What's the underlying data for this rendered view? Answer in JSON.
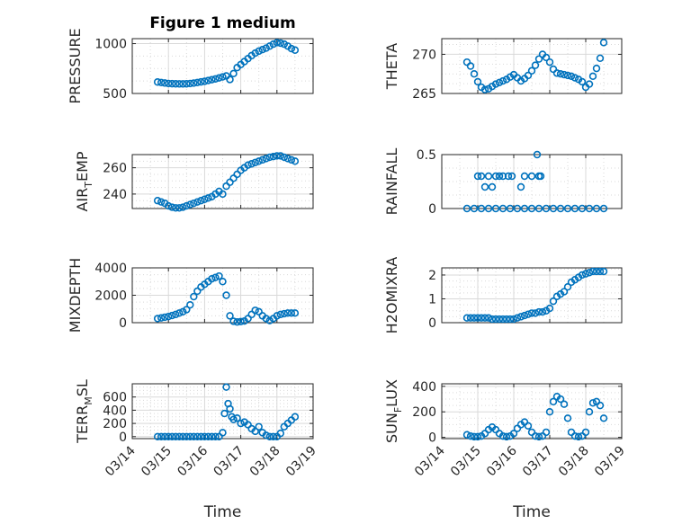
{
  "figure": {
    "title": "Figure 1 medium"
  },
  "colors": {
    "marker": "#0072BD",
    "grid": "#d9d9d9",
    "axis": "#262626",
    "background": "#ffffff"
  },
  "chart_data": [
    {
      "id": "pressure",
      "type": "scatter",
      "title": "Figure 1 medium",
      "ylabel": "PRESSURE",
      "xlabel": "",
      "ylim": [
        500,
        1050
      ],
      "yticks": [
        500,
        1000
      ],
      "xticks": [],
      "grid": true,
      "x": [
        14.7,
        14.8,
        14.9,
        15.0,
        15.1,
        15.2,
        15.3,
        15.4,
        15.5,
        15.6,
        15.7,
        15.8,
        15.9,
        16.0,
        16.1,
        16.2,
        16.3,
        16.4,
        16.5,
        16.6,
        16.7,
        16.8,
        16.9,
        17.0,
        17.1,
        17.2,
        17.3,
        17.4,
        17.5,
        17.6,
        17.7,
        17.8,
        17.9,
        18.0,
        18.1,
        18.2,
        18.3,
        18.4,
        18.5
      ],
      "y": [
        615,
        610,
        605,
        600,
        598,
        597,
        596,
        596,
        597,
        600,
        604,
        610,
        616,
        622,
        630,
        638,
        646,
        656,
        666,
        676,
        640,
        700,
        760,
        790,
        820,
        850,
        880,
        905,
        925,
        940,
        955,
        975,
        995,
        1010,
        1005,
        995,
        975,
        950,
        935
      ]
    },
    {
      "id": "theta",
      "type": "scatter",
      "title": "",
      "ylabel": "THETA",
      "xlabel": "",
      "ylim": [
        265,
        272
      ],
      "yticks": [
        265,
        270
      ],
      "xticks": [],
      "grid": true,
      "x": [
        14.7,
        14.8,
        14.9,
        15.0,
        15.1,
        15.2,
        15.3,
        15.4,
        15.5,
        15.6,
        15.7,
        15.8,
        15.9,
        16.0,
        16.1,
        16.2,
        16.3,
        16.4,
        16.5,
        16.6,
        16.7,
        16.8,
        16.9,
        17.0,
        17.1,
        17.2,
        17.3,
        17.4,
        17.5,
        17.6,
        17.7,
        17.8,
        17.9,
        18.0,
        18.1,
        18.2,
        18.3,
        18.4,
        18.5
      ],
      "y": [
        269.0,
        268.5,
        267.5,
        266.5,
        265.8,
        265.5,
        265.6,
        265.9,
        266.2,
        266.4,
        266.6,
        266.8,
        267.1,
        267.4,
        267.0,
        266.6,
        266.9,
        267.3,
        267.9,
        268.6,
        269.4,
        270.0,
        269.6,
        269.0,
        268.1,
        267.6,
        267.5,
        267.4,
        267.3,
        267.2,
        267.0,
        266.8,
        266.5,
        265.8,
        266.2,
        267.2,
        268.2,
        269.5,
        271.5
      ]
    },
    {
      "id": "air_temp",
      "type": "scatter",
      "title": "",
      "ylabel": "AIR",
      "ylabel_sub": "T",
      "ylabel_rest": "EMP",
      "xlabel": "",
      "ylim": [
        229,
        270
      ],
      "yticks": [
        240,
        260
      ],
      "xticks": [],
      "grid": true,
      "x": [
        14.7,
        14.8,
        14.9,
        15.0,
        15.1,
        15.2,
        15.3,
        15.4,
        15.5,
        15.6,
        15.7,
        15.8,
        15.9,
        16.0,
        16.1,
        16.2,
        16.3,
        16.4,
        16.5,
        16.6,
        16.7,
        16.8,
        16.9,
        17.0,
        17.1,
        17.2,
        17.3,
        17.4,
        17.5,
        17.6,
        17.7,
        17.8,
        17.9,
        18.0,
        18.1,
        18.2,
        18.3,
        18.4,
        18.5
      ],
      "y": [
        235,
        234,
        233,
        231,
        230,
        229.5,
        229.5,
        230,
        231,
        232,
        233,
        234,
        235,
        236,
        237,
        238,
        240,
        242,
        240,
        246,
        249,
        252,
        255,
        258,
        260,
        262,
        263,
        264,
        265,
        266,
        267,
        268,
        268.5,
        269,
        269,
        268,
        267,
        266,
        265
      ]
    },
    {
      "id": "rainfall",
      "type": "scatter",
      "title": "",
      "ylabel": "RAINFALL",
      "xlabel": "",
      "ylim": [
        0,
        0.5
      ],
      "yticks": [
        0,
        0.5
      ],
      "xticks": [],
      "grid": true,
      "x": [
        14.7,
        14.9,
        15.1,
        15.3,
        15.5,
        15.7,
        15.9,
        16.1,
        16.3,
        16.5,
        16.7,
        16.9,
        17.1,
        17.3,
        17.5,
        17.7,
        17.9,
        18.1,
        18.3,
        18.5,
        15.0,
        15.1,
        15.2,
        15.3,
        15.4,
        15.5,
        15.6,
        15.7,
        15.85,
        15.95,
        16.2,
        16.3,
        16.5,
        16.65,
        16.7,
        16.75
      ],
      "y": [
        0,
        0,
        0,
        0,
        0,
        0,
        0,
        0,
        0,
        0,
        0,
        0,
        0,
        0,
        0,
        0,
        0,
        0,
        0,
        0,
        0.3,
        0.3,
        0.2,
        0.3,
        0.2,
        0.3,
        0.3,
        0.3,
        0.3,
        0.3,
        0.2,
        0.3,
        0.3,
        0.5,
        0.3,
        0.3
      ]
    },
    {
      "id": "mixdepth",
      "type": "scatter",
      "title": "",
      "ylabel": "MIXDEPTH",
      "xlabel": "",
      "ylim": [
        0,
        4000
      ],
      "yticks": [
        0,
        2000,
        4000
      ],
      "xticks": [],
      "grid": true,
      "x": [
        14.7,
        14.8,
        14.9,
        15.0,
        15.1,
        15.2,
        15.3,
        15.4,
        15.5,
        15.6,
        15.7,
        15.8,
        15.9,
        16.0,
        16.1,
        16.2,
        16.3,
        16.4,
        16.5,
        16.6,
        16.7,
        16.8,
        16.9,
        17.0,
        17.1,
        17.2,
        17.3,
        17.4,
        17.5,
        17.6,
        17.7,
        17.8,
        17.9,
        18.0,
        18.1,
        18.2,
        18.3,
        18.4,
        18.5
      ],
      "y": [
        300,
        350,
        400,
        450,
        520,
        600,
        700,
        800,
        950,
        1300,
        1900,
        2300,
        2600,
        2800,
        3000,
        3200,
        3300,
        3400,
        3000,
        2000,
        500,
        100,
        50,
        80,
        120,
        300,
        600,
        900,
        800,
        500,
        300,
        150,
        300,
        500,
        600,
        650,
        700,
        700,
        700
      ]
    },
    {
      "id": "h2omixra",
      "type": "scatter",
      "title": "",
      "ylabel": "H2OMIXRA",
      "xlabel": "",
      "ylim": [
        0,
        2.3
      ],
      "yticks": [
        0,
        1,
        2
      ],
      "xticks": [],
      "grid": true,
      "x": [
        14.7,
        14.8,
        14.9,
        15.0,
        15.1,
        15.2,
        15.3,
        15.4,
        15.5,
        15.6,
        15.7,
        15.8,
        15.9,
        16.0,
        16.1,
        16.2,
        16.3,
        16.4,
        16.5,
        16.6,
        16.7,
        16.8,
        16.9,
        17.0,
        17.1,
        17.2,
        17.3,
        17.4,
        17.5,
        17.6,
        17.7,
        17.8,
        17.9,
        18.0,
        18.1,
        18.2,
        18.3,
        18.4,
        18.5
      ],
      "y": [
        0.2,
        0.2,
        0.2,
        0.2,
        0.2,
        0.2,
        0.2,
        0.15,
        0.15,
        0.15,
        0.15,
        0.15,
        0.15,
        0.15,
        0.2,
        0.25,
        0.3,
        0.35,
        0.4,
        0.4,
        0.45,
        0.45,
        0.5,
        0.6,
        0.9,
        1.1,
        1.2,
        1.3,
        1.5,
        1.7,
        1.8,
        1.9,
        2.0,
        2.05,
        2.1,
        2.15,
        2.15,
        2.15,
        2.15
      ]
    },
    {
      "id": "terr_msl",
      "type": "scatter",
      "title": "",
      "ylabel": "TERR",
      "ylabel_sub": "M",
      "ylabel_rest": "SL",
      "xlabel": "Time",
      "ylim": [
        -30,
        800
      ],
      "yticks": [
        0,
        200,
        400,
        600
      ],
      "grid": true,
      "xticks": [
        14,
        15,
        16,
        17,
        18,
        19
      ],
      "xticklabels": [
        "03/14",
        "03/15",
        "03/16",
        "03/17",
        "03/18",
        "03/19"
      ],
      "x": [
        14.7,
        14.8,
        14.9,
        15.0,
        15.1,
        15.2,
        15.3,
        15.4,
        15.5,
        15.6,
        15.7,
        15.8,
        15.9,
        16.0,
        16.1,
        16.2,
        16.3,
        16.4,
        16.5,
        16.55,
        16.6,
        16.65,
        16.7,
        16.75,
        16.8,
        16.9,
        17.0,
        17.1,
        17.2,
        17.3,
        17.4,
        17.5,
        17.6,
        17.7,
        17.8,
        17.9,
        18.0,
        18.1,
        18.2,
        18.3,
        18.4,
        18.5
      ],
      "y": [
        0,
        0,
        0,
        0,
        0,
        0,
        0,
        0,
        0,
        0,
        0,
        0,
        0,
        0,
        0,
        0,
        0,
        0,
        60,
        350,
        750,
        500,
        420,
        300,
        260,
        280,
        200,
        220,
        180,
        120,
        80,
        150,
        60,
        20,
        0,
        0,
        0,
        50,
        150,
        200,
        250,
        300
      ]
    },
    {
      "id": "sun_flux",
      "type": "scatter",
      "title": "",
      "ylabel": "SUN",
      "ylabel_sub": "F",
      "ylabel_rest": "LUX",
      "xlabel": "Time",
      "ylim": [
        -10,
        420
      ],
      "yticks": [
        0,
        200,
        400
      ],
      "grid": true,
      "xticks": [
        14,
        15,
        16,
        17,
        18,
        19
      ],
      "xticklabels": [
        "03/14",
        "03/15",
        "03/16",
        "03/17",
        "03/18",
        "03/19"
      ],
      "x": [
        14.7,
        14.8,
        14.9,
        15.0,
        15.1,
        15.2,
        15.3,
        15.4,
        15.5,
        15.6,
        15.7,
        15.8,
        15.9,
        16.0,
        16.1,
        16.2,
        16.3,
        16.4,
        16.5,
        16.6,
        16.7,
        16.8,
        16.9,
        17.0,
        17.1,
        17.2,
        17.3,
        17.4,
        17.5,
        17.6,
        17.7,
        17.8,
        17.9,
        18.0,
        18.1,
        18.2,
        18.3,
        18.4,
        18.5
      ],
      "y": [
        20,
        10,
        5,
        5,
        10,
        30,
        60,
        80,
        60,
        30,
        10,
        5,
        10,
        30,
        70,
        100,
        120,
        90,
        40,
        10,
        5,
        10,
        40,
        200,
        280,
        320,
        300,
        260,
        150,
        40,
        10,
        5,
        10,
        40,
        200,
        270,
        280,
        250,
        150
      ]
    }
  ]
}
